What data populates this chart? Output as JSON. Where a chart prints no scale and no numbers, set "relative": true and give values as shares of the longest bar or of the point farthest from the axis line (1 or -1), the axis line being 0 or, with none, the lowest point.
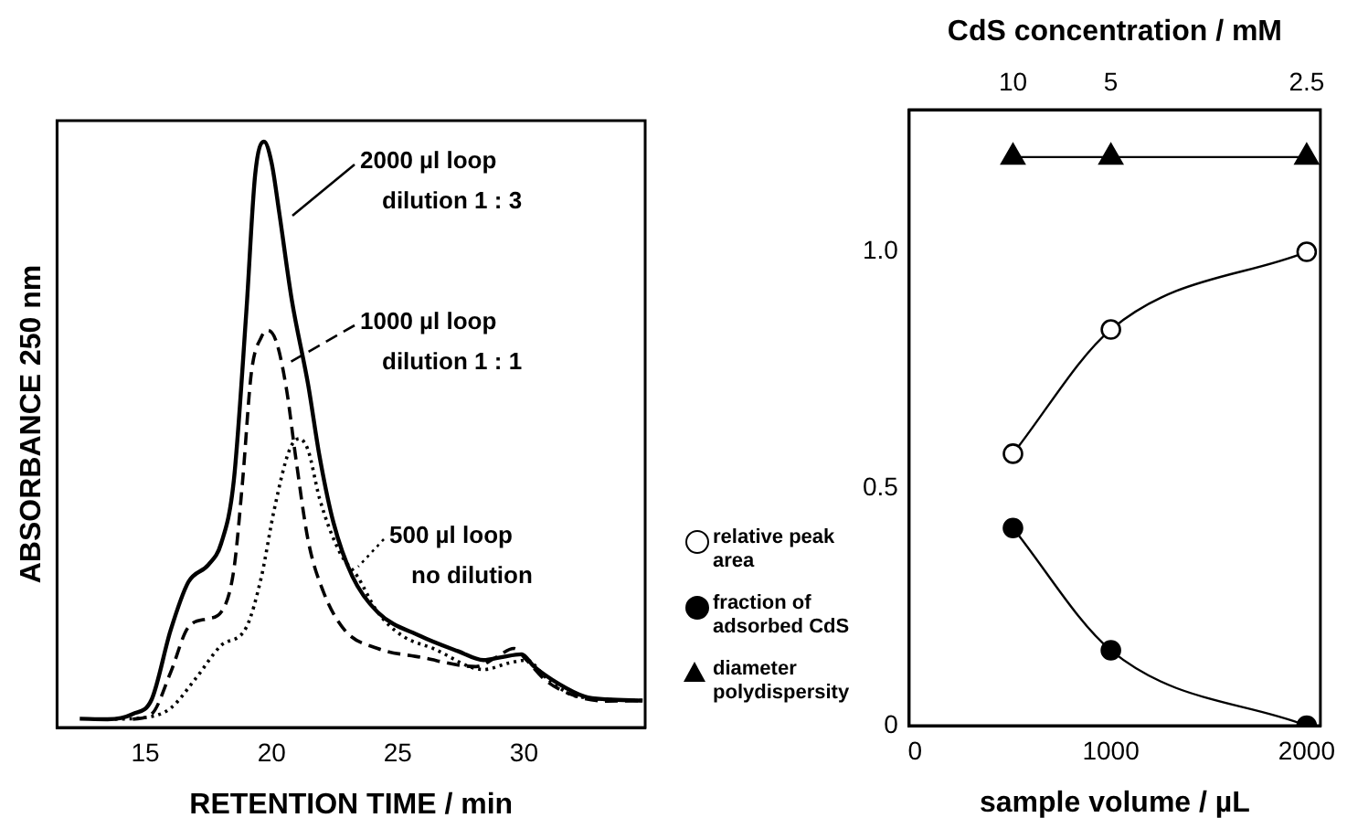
{
  "chart_data": [
    {
      "type": "line",
      "xlabel": "RETENTION TIME / min",
      "ylabel": "ABSORBANCE 250 nm",
      "relative": true,
      "xlim": [
        11.5,
        34.8
      ],
      "xticks": [
        15,
        20,
        25,
        30
      ],
      "tick_labels": "x",
      "grid": false,
      "legend": "right",
      "series": [
        {
          "name": "2000 µl loop dilution 1 : 3",
          "color": "#000000",
          "line_style": "solid",
          "x": [
            12.4,
            13.5,
            14.5,
            15.25,
            16,
            16.7,
            17.5,
            18,
            18.5,
            19,
            19.35,
            19.7,
            20,
            20.3,
            20.8,
            21.45,
            21.9,
            22.45,
            23.2,
            24.2,
            25.9,
            27.4,
            28.4,
            29.1,
            29.9,
            30.4,
            31.4,
            32.4,
            33.3,
            34.7
          ],
          "values": [
            0.015,
            0.014,
            0.023,
            0.048,
            0.166,
            0.248,
            0.278,
            0.314,
            0.42,
            0.71,
            0.944,
            1.0,
            0.964,
            0.88,
            0.73,
            0.585,
            0.463,
            0.35,
            0.258,
            0.197,
            0.156,
            0.13,
            0.115,
            0.12,
            0.125,
            0.104,
            0.074,
            0.053,
            0.048,
            0.046
          ]
        },
        {
          "name": "1000 µl loop dilution 1 : 1",
          "color": "#000000",
          "line_style": "dashed",
          "x": [
            14.5,
            15.25,
            16,
            16.7,
            17.5,
            18,
            18.5,
            18.85,
            19.2,
            19.6,
            19.85,
            20.2,
            20.6,
            20.95,
            21.45,
            22.05,
            22.9,
            24.2,
            25.9,
            28.1,
            28.9,
            29.6,
            30.1,
            30.9,
            32.1,
            33.3,
            34.7
          ],
          "values": [
            0.014,
            0.023,
            0.094,
            0.171,
            0.186,
            0.197,
            0.268,
            0.42,
            0.606,
            0.667,
            0.678,
            0.657,
            0.575,
            0.463,
            0.319,
            0.232,
            0.166,
            0.135,
            0.12,
            0.104,
            0.12,
            0.135,
            0.115,
            0.079,
            0.053,
            0.045,
            0.046
          ]
        },
        {
          "name": "500 µl loop no dilution",
          "color": "#000000",
          "line_style": "dotted",
          "x": [
            13.5,
            15,
            16,
            17,
            18,
            19,
            19.6,
            20.1,
            20.7,
            21.1,
            21.45,
            21.9,
            22.7,
            23.4,
            24.2,
            25.2,
            26.4,
            28.4,
            29.4,
            30.1,
            30.9,
            32.1,
            34.7
          ],
          "values": [
            0.014,
            0.017,
            0.033,
            0.084,
            0.14,
            0.171,
            0.258,
            0.371,
            0.473,
            0.493,
            0.473,
            0.391,
            0.299,
            0.258,
            0.197,
            0.156,
            0.135,
            0.099,
            0.11,
            0.115,
            0.084,
            0.053,
            0.046
          ]
        }
      ]
    },
    {
      "type": "line",
      "xlabel": "sample volume / µL",
      "x2label": "CdS concentration / mM",
      "xlim": [
        -30,
        2070
      ],
      "xticks": [
        0,
        1000,
        2000
      ],
      "annotations": [
        "10",
        "5",
        "2.5"
      ],
      "ylim": [
        0,
        1.3
      ],
      "yticks": [
        0,
        0.5,
        {
          "value": 1,
          "label": "1.0"
        }
      ],
      "grid": false,
      "legend": "left",
      "x": [
        500,
        1000,
        2000
      ],
      "series": [
        {
          "name": "relative peak area",
          "color": "#000000",
          "colors": [
            "#ffffff",
            "#ffffff",
            "#ffffff"
          ],
          "marker": "circle",
          "values": [
            0.574,
            0.836,
            1.0
          ]
        },
        {
          "name": "fraction of adsorbed CdS",
          "color": "#000000",
          "marker": "circle",
          "values": [
            0.417,
            0.159,
            0
          ]
        },
        {
          "name": "diameter polydispersity",
          "color": "#000000",
          "marker": "triangle",
          "values": [
            1.2,
            1.2,
            1.2
          ]
        }
      ]
    }
  ]
}
